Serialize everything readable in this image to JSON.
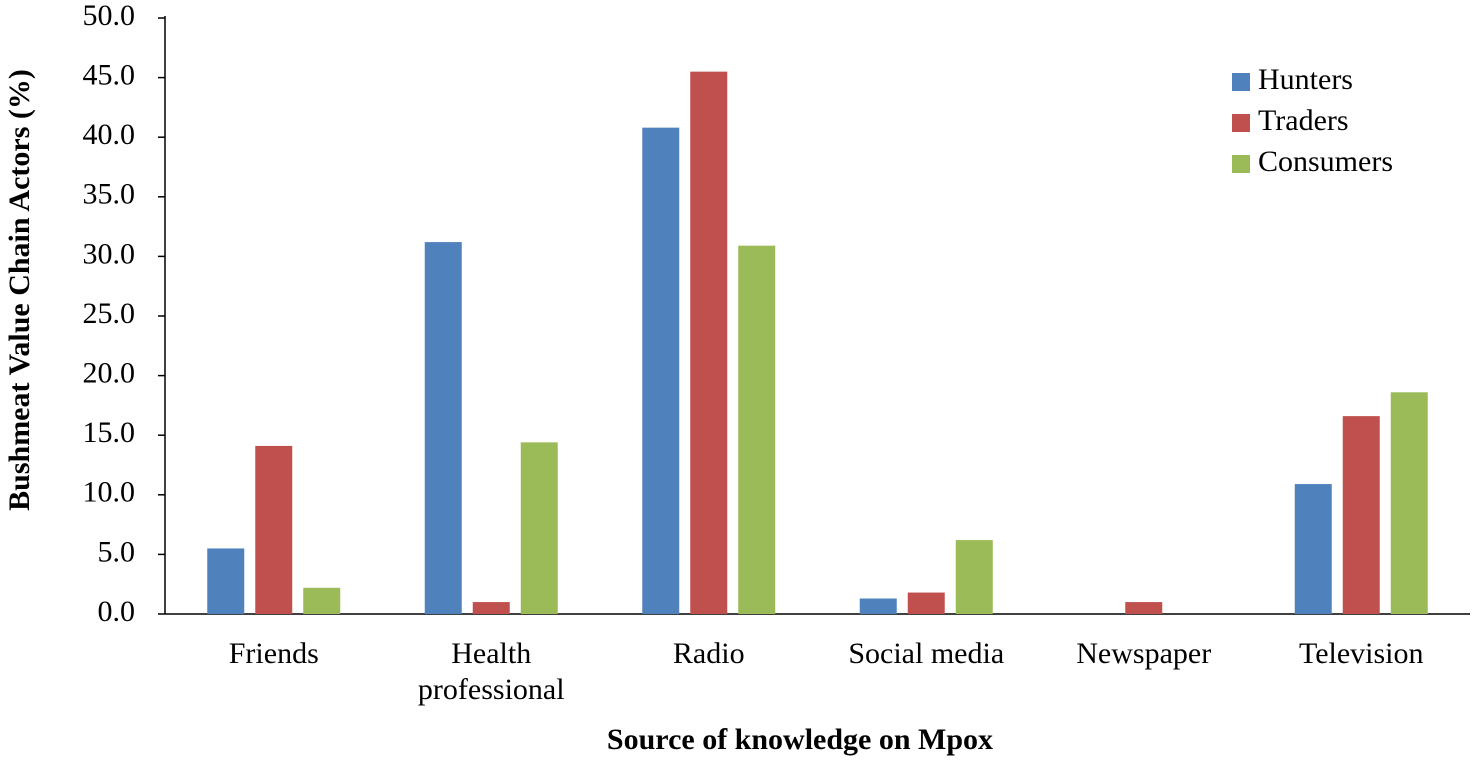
{
  "chart_data": {
    "type": "bar",
    "x_label": "Source of knowledge on Mpox",
    "y_label": "Bushmeat Value Chain Actors (%)",
    "categories": [
      "Friends",
      "Health professional",
      "Radio",
      "Social media",
      "Newspaper",
      "Television"
    ],
    "series": [
      {
        "name": "Hunters",
        "color": "#4f81bd",
        "values": [
          5.5,
          31.2,
          40.8,
          1.3,
          0,
          10.9
        ]
      },
      {
        "name": "Traders",
        "color": "#c0504d",
        "values": [
          14.1,
          1.0,
          45.5,
          1.8,
          1.0,
          16.6
        ]
      },
      {
        "name": "Consumers",
        "color": "#9bbb59",
        "values": [
          2.2,
          14.4,
          30.9,
          6.2,
          0,
          18.6
        ]
      }
    ],
    "ylim": [
      0,
      50
    ],
    "yticks": [
      {
        "value": 0,
        "label": "0.0"
      },
      {
        "value": 5,
        "label": "5.0"
      },
      {
        "value": 10,
        "label": "10.0"
      },
      {
        "value": 15,
        "label": "15.0"
      },
      {
        "value": 20,
        "label": "20.0"
      },
      {
        "value": 25,
        "label": "25.0"
      },
      {
        "value": 30,
        "label": "30.0"
      },
      {
        "value": 35,
        "label": "35.0"
      },
      {
        "value": 40,
        "label": "40.0"
      },
      {
        "value": 45,
        "label": "45.0"
      },
      {
        "value": 50,
        "label": "50.0"
      }
    ],
    "legend": "upper-right"
  }
}
